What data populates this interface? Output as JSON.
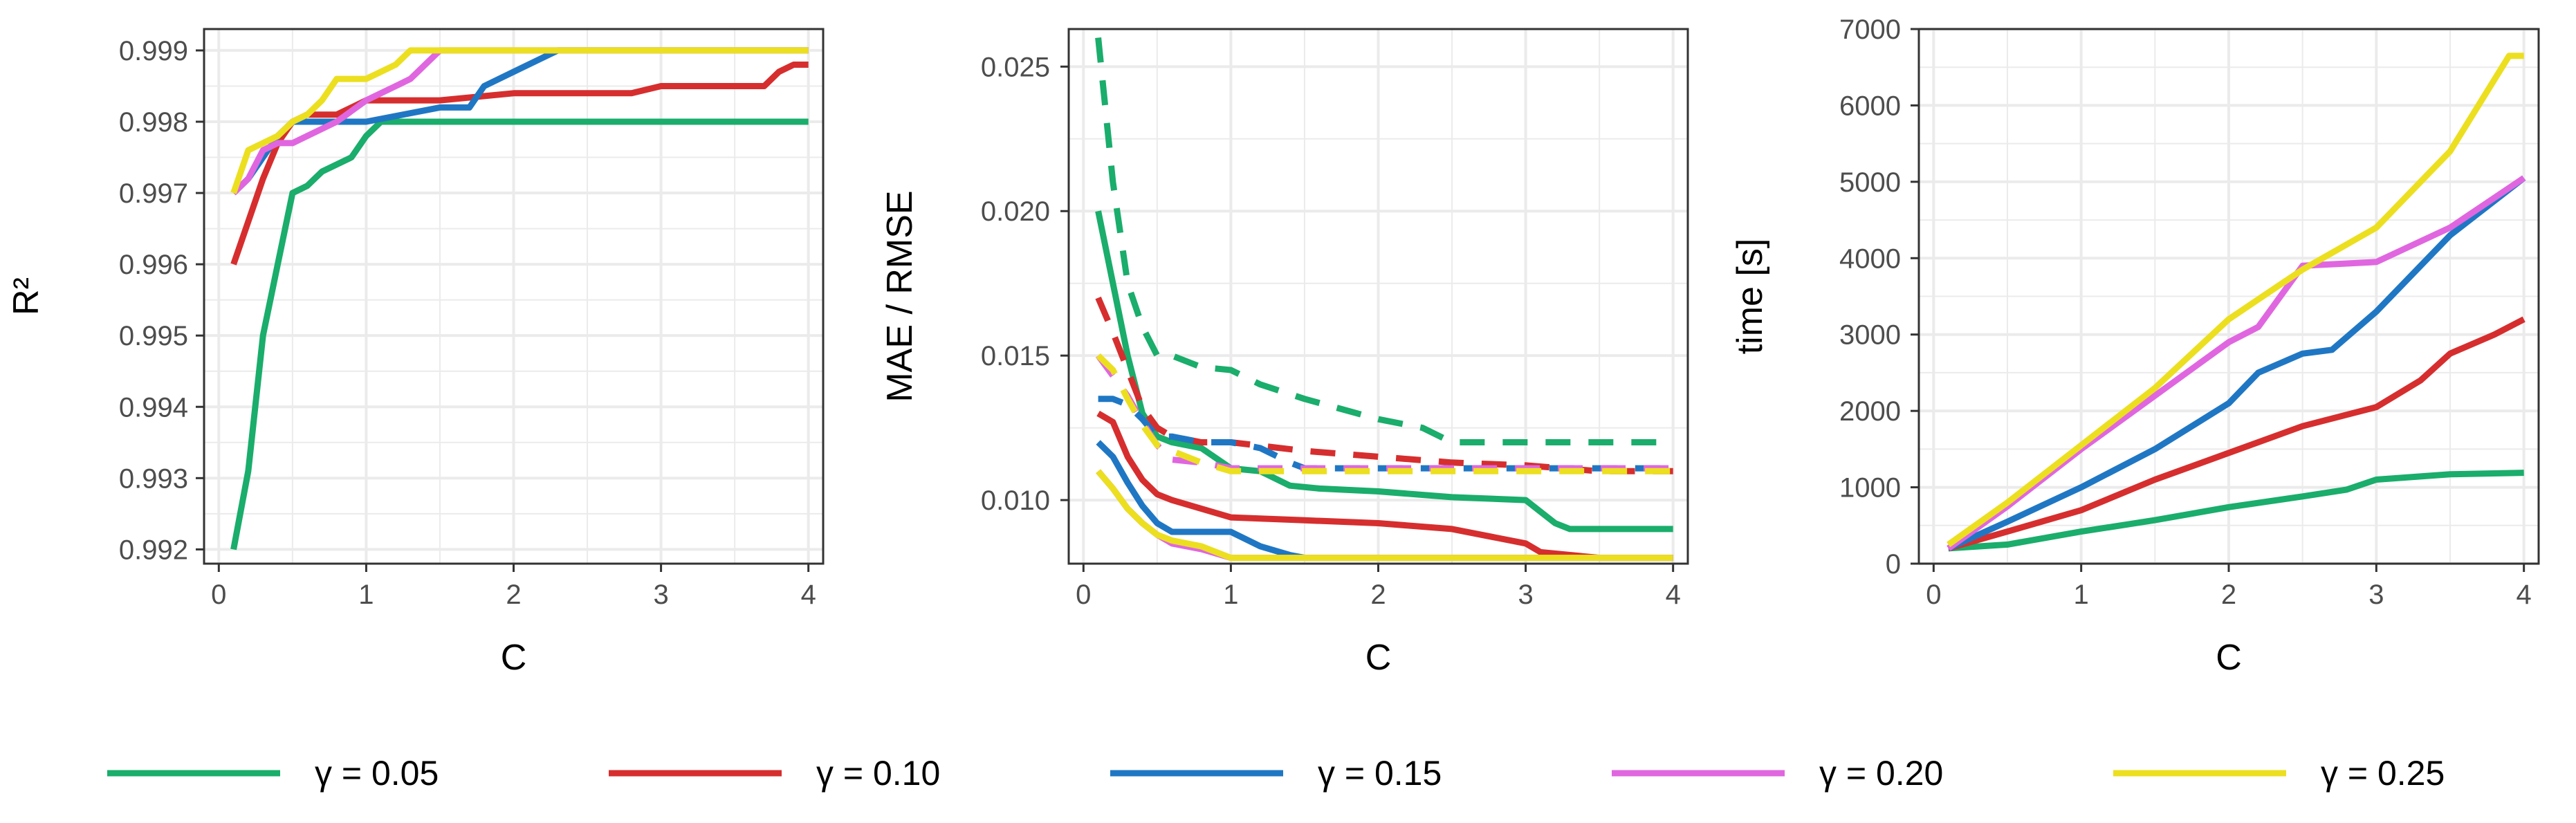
{
  "chart_data": [
    {
      "type": "line",
      "xlabel": "C",
      "ylabel": "R²",
      "xlim": [
        -0.1,
        4.1
      ],
      "ylim": [
        0.9918,
        0.9993
      ],
      "xticks": [
        0,
        1,
        2,
        3,
        4
      ],
      "xtick_labels": [
        "0",
        "1",
        "2",
        "3",
        "4"
      ],
      "yticks": [
        0.992,
        0.993,
        0.994,
        0.995,
        0.996,
        0.997,
        0.998,
        0.999
      ],
      "ytick_labels": [
        "0.992",
        "0.993",
        "0.994",
        "0.995",
        "0.996",
        "0.997",
        "0.998",
        "0.999"
      ],
      "grid": true,
      "series": [
        {
          "name": "γ = 0.05",
          "color": "#1aad6b",
          "style": "solid",
          "x": [
            0.1,
            0.2,
            0.3,
            0.4,
            0.5,
            0.6,
            0.7,
            0.8,
            0.9,
            1.0,
            1.1,
            1.5,
            2.0,
            3.0,
            4.0
          ],
          "y": [
            0.992,
            0.9931,
            0.995,
            0.996,
            0.997,
            0.9971,
            0.9973,
            0.9974,
            0.9975,
            0.9978,
            0.998,
            0.998,
            0.998,
            0.998,
            0.998
          ]
        },
        {
          "name": "γ = 0.10",
          "color": "#d62e2e",
          "style": "solid",
          "x": [
            0.1,
            0.2,
            0.3,
            0.4,
            0.5,
            0.6,
            0.8,
            1.0,
            1.5,
            2.0,
            2.8,
            3.0,
            3.7,
            3.8,
            3.9,
            4.0
          ],
          "y": [
            0.996,
            0.9966,
            0.9972,
            0.9977,
            0.998,
            0.9981,
            0.9981,
            0.9983,
            0.9983,
            0.9984,
            0.9984,
            0.9985,
            0.9985,
            0.9987,
            0.9988,
            0.9988
          ]
        },
        {
          "name": "γ = 0.15",
          "color": "#1f77c4",
          "style": "solid",
          "x": [
            0.1,
            0.2,
            0.3,
            0.4,
            0.5,
            0.6,
            1.0,
            1.5,
            1.7,
            1.8,
            2.0,
            2.2,
            2.3,
            2.5,
            4.0
          ],
          "y": [
            0.997,
            0.9972,
            0.9975,
            0.9978,
            0.998,
            0.998,
            0.998,
            0.9982,
            0.9982,
            0.9985,
            0.9987,
            0.9989,
            0.999,
            0.999,
            0.999
          ]
        },
        {
          "name": "γ = 0.20",
          "color": "#e066e0",
          "style": "solid",
          "x": [
            0.1,
            0.2,
            0.3,
            0.4,
            0.5,
            0.6,
            0.8,
            1.0,
            1.2,
            1.3,
            1.4,
            1.5,
            4.0
          ],
          "y": [
            0.997,
            0.9972,
            0.9976,
            0.9977,
            0.9977,
            0.9978,
            0.998,
            0.9983,
            0.9985,
            0.9986,
            0.9988,
            0.999,
            0.999
          ]
        },
        {
          "name": "γ = 0.25",
          "color": "#ecdf1f",
          "style": "solid",
          "x": [
            0.1,
            0.2,
            0.3,
            0.4,
            0.5,
            0.6,
            0.7,
            0.8,
            0.9,
            1.0,
            1.1,
            1.2,
            1.3,
            1.4,
            4.0
          ],
          "y": [
            0.997,
            0.9976,
            0.9977,
            0.9978,
            0.998,
            0.9981,
            0.9983,
            0.9986,
            0.9986,
            0.9986,
            0.9987,
            0.9988,
            0.999,
            0.999,
            0.999
          ]
        }
      ]
    },
    {
      "type": "line",
      "xlabel": "C",
      "ylabel": "MAE / RMSE",
      "xlim": [
        -0.1,
        4.1
      ],
      "ylim": [
        0.0078,
        0.0263
      ],
      "xticks": [
        0,
        1,
        2,
        3,
        4
      ],
      "xtick_labels": [
        "0",
        "1",
        "2",
        "3",
        "4"
      ],
      "yticks": [
        0.01,
        0.015,
        0.02,
        0.025
      ],
      "ytick_labels": [
        "0.010",
        "0.015",
        "0.020",
        "0.025"
      ],
      "grid": true,
      "series": [
        {
          "name": "γ = 0.05 MAE",
          "color": "#1aad6b",
          "style": "solid",
          "x": [
            0.1,
            0.2,
            0.3,
            0.4,
            0.5,
            0.6,
            0.8,
            1.0,
            1.2,
            1.4,
            1.6,
            2.0,
            2.5,
            3.0,
            3.1,
            3.2,
            3.3,
            4.0
          ],
          "y": [
            0.02,
            0.0175,
            0.015,
            0.013,
            0.0122,
            0.012,
            0.0118,
            0.0111,
            0.011,
            0.0105,
            0.0104,
            0.0103,
            0.0101,
            0.01,
            0.0096,
            0.0092,
            0.009,
            0.009
          ]
        },
        {
          "name": "γ = 0.05 RMSE",
          "color": "#1aad6b",
          "style": "dashed",
          "x": [
            0.1,
            0.2,
            0.3,
            0.4,
            0.5,
            0.6,
            0.8,
            1.0,
            1.2,
            1.5,
            2.0,
            2.3,
            2.5,
            3.0,
            4.0
          ],
          "y": [
            0.026,
            0.021,
            0.0175,
            0.016,
            0.015,
            0.015,
            0.0146,
            0.0145,
            0.014,
            0.0135,
            0.0128,
            0.0125,
            0.012,
            0.012,
            0.012
          ]
        },
        {
          "name": "γ = 0.10 MAE",
          "color": "#d62e2e",
          "style": "solid",
          "x": [
            0.1,
            0.2,
            0.3,
            0.4,
            0.5,
            0.6,
            0.8,
            1.0,
            1.5,
            2.0,
            2.5,
            3.0,
            3.1,
            3.3,
            3.5,
            4.0
          ],
          "y": [
            0.013,
            0.0127,
            0.0115,
            0.0107,
            0.0102,
            0.01,
            0.0097,
            0.0094,
            0.0093,
            0.0092,
            0.009,
            0.0085,
            0.0082,
            0.0081,
            0.008,
            0.008
          ]
        },
        {
          "name": "γ = 0.10 RMSE",
          "color": "#d62e2e",
          "style": "dashed",
          "x": [
            0.1,
            0.2,
            0.3,
            0.4,
            0.5,
            0.6,
            0.8,
            1.0,
            1.5,
            2.0,
            2.5,
            3.0,
            3.5,
            4.0
          ],
          "y": [
            0.017,
            0.0158,
            0.0145,
            0.0132,
            0.0125,
            0.0122,
            0.012,
            0.012,
            0.0117,
            0.0115,
            0.0113,
            0.0112,
            0.011,
            0.011
          ]
        },
        {
          "name": "γ = 0.15 MAE",
          "color": "#1f77c4",
          "style": "solid",
          "x": [
            0.1,
            0.2,
            0.3,
            0.4,
            0.5,
            0.6,
            0.8,
            1.0,
            1.2,
            1.4,
            1.5,
            4.0
          ],
          "y": [
            0.012,
            0.0115,
            0.0106,
            0.0098,
            0.0092,
            0.0089,
            0.0089,
            0.0089,
            0.0084,
            0.0081,
            0.008,
            0.008
          ]
        },
        {
          "name": "γ = 0.15 RMSE",
          "color": "#1f77c4",
          "style": "dashed",
          "x": [
            0.1,
            0.2,
            0.3,
            0.4,
            0.5,
            0.6,
            0.8,
            1.0,
            1.2,
            1.4,
            1.5,
            4.0
          ],
          "y": [
            0.0135,
            0.0135,
            0.0133,
            0.0128,
            0.0122,
            0.0122,
            0.012,
            0.012,
            0.0118,
            0.0113,
            0.0111,
            0.0111
          ]
        },
        {
          "name": "γ = 0.20 MAE",
          "color": "#e066e0",
          "style": "solid",
          "x": [
            0.1,
            0.2,
            0.3,
            0.4,
            0.5,
            0.6,
            0.8,
            1.0,
            4.0
          ],
          "y": [
            0.011,
            0.0104,
            0.0097,
            0.0092,
            0.0088,
            0.0085,
            0.0083,
            0.008,
            0.008
          ]
        },
        {
          "name": "γ = 0.20 RMSE",
          "color": "#e066e0",
          "style": "dashed",
          "x": [
            0.1,
            0.2,
            0.3,
            0.4,
            0.5,
            0.6,
            0.8,
            1.0,
            4.0
          ],
          "y": [
            0.015,
            0.0143,
            0.0136,
            0.0127,
            0.0119,
            0.0114,
            0.0113,
            0.0111,
            0.0111
          ]
        },
        {
          "name": "γ = 0.25 MAE",
          "color": "#ecdf1f",
          "style": "solid",
          "x": [
            0.1,
            0.2,
            0.3,
            0.4,
            0.5,
            0.6,
            0.8,
            1.0,
            4.0
          ],
          "y": [
            0.011,
            0.0104,
            0.0097,
            0.0092,
            0.0088,
            0.0086,
            0.0084,
            0.008,
            0.008
          ]
        },
        {
          "name": "γ = 0.25 RMSE",
          "color": "#ecdf1f",
          "style": "dashed",
          "x": [
            0.1,
            0.2,
            0.3,
            0.4,
            0.5,
            0.6,
            0.8,
            1.0,
            4.0
          ],
          "y": [
            0.015,
            0.0145,
            0.0135,
            0.0126,
            0.0119,
            0.0117,
            0.0113,
            0.011,
            0.011
          ]
        }
      ]
    },
    {
      "type": "line",
      "xlabel": "C",
      "ylabel": "time [s]",
      "xlim": [
        -0.1,
        4.1
      ],
      "ylim": [
        0,
        7000
      ],
      "xticks": [
        0,
        1,
        2,
        3,
        4
      ],
      "xtick_labels": [
        "0",
        "1",
        "2",
        "3",
        "4"
      ],
      "yticks": [
        0,
        1000,
        2000,
        3000,
        4000,
        5000,
        6000,
        7000
      ],
      "ytick_labels": [
        "0",
        "1000",
        "2000",
        "3000",
        "4000",
        "5000",
        "6000",
        "7000"
      ],
      "grid": true,
      "series": [
        {
          "name": "γ = 0.05",
          "color": "#1aad6b",
          "style": "solid",
          "x": [
            0.1,
            0.5,
            1.0,
            1.5,
            2.0,
            2.5,
            2.8,
            3.0,
            3.5,
            4.0
          ],
          "y": [
            200,
            250,
            420,
            570,
            740,
            880,
            970,
            1100,
            1170,
            1190
          ]
        },
        {
          "name": "γ = 0.10",
          "color": "#d62e2e",
          "style": "solid",
          "x": [
            0.1,
            0.5,
            1.0,
            1.5,
            2.0,
            2.5,
            3.0,
            3.3,
            3.5,
            3.8,
            4.0
          ],
          "y": [
            200,
            420,
            700,
            1100,
            1450,
            1800,
            2050,
            2400,
            2750,
            3000,
            3200
          ]
        },
        {
          "name": "γ = 0.15",
          "color": "#1f77c4",
          "style": "solid",
          "x": [
            0.1,
            0.5,
            1.0,
            1.5,
            2.0,
            2.2,
            2.5,
            2.7,
            3.0,
            3.5,
            4.0
          ],
          "y": [
            200,
            550,
            1000,
            1500,
            2100,
            2500,
            2750,
            2800,
            3300,
            4300,
            5050
          ]
        },
        {
          "name": "γ = 0.20",
          "color": "#e066e0",
          "style": "solid",
          "x": [
            0.1,
            0.5,
            1.0,
            1.5,
            2.0,
            2.2,
            2.5,
            3.0,
            3.5,
            4.0
          ],
          "y": [
            200,
            750,
            1500,
            2200,
            2900,
            3100,
            3900,
            3950,
            4400,
            5050
          ]
        },
        {
          "name": "γ = 0.25",
          "color": "#ecdf1f",
          "style": "solid",
          "x": [
            0.1,
            0.5,
            1.0,
            1.5,
            2.0,
            2.5,
            3.0,
            3.5,
            3.9,
            4.0
          ],
          "y": [
            250,
            800,
            1550,
            2300,
            3200,
            3850,
            4400,
            5400,
            6650,
            6650
          ]
        }
      ]
    }
  ],
  "legend": [
    {
      "label": "γ = 0.05",
      "color": "#1aad6b"
    },
    {
      "label": "γ = 0.10",
      "color": "#d62e2e"
    },
    {
      "label": "γ = 0.15",
      "color": "#1f77c4"
    },
    {
      "label": "γ = 0.20",
      "color": "#e066e0"
    },
    {
      "label": "γ = 0.25",
      "color": "#ecdf1f"
    }
  ],
  "colors": {
    "panel_border": "#333333",
    "grid": "#ebebeb",
    "tick": "#333333"
  }
}
